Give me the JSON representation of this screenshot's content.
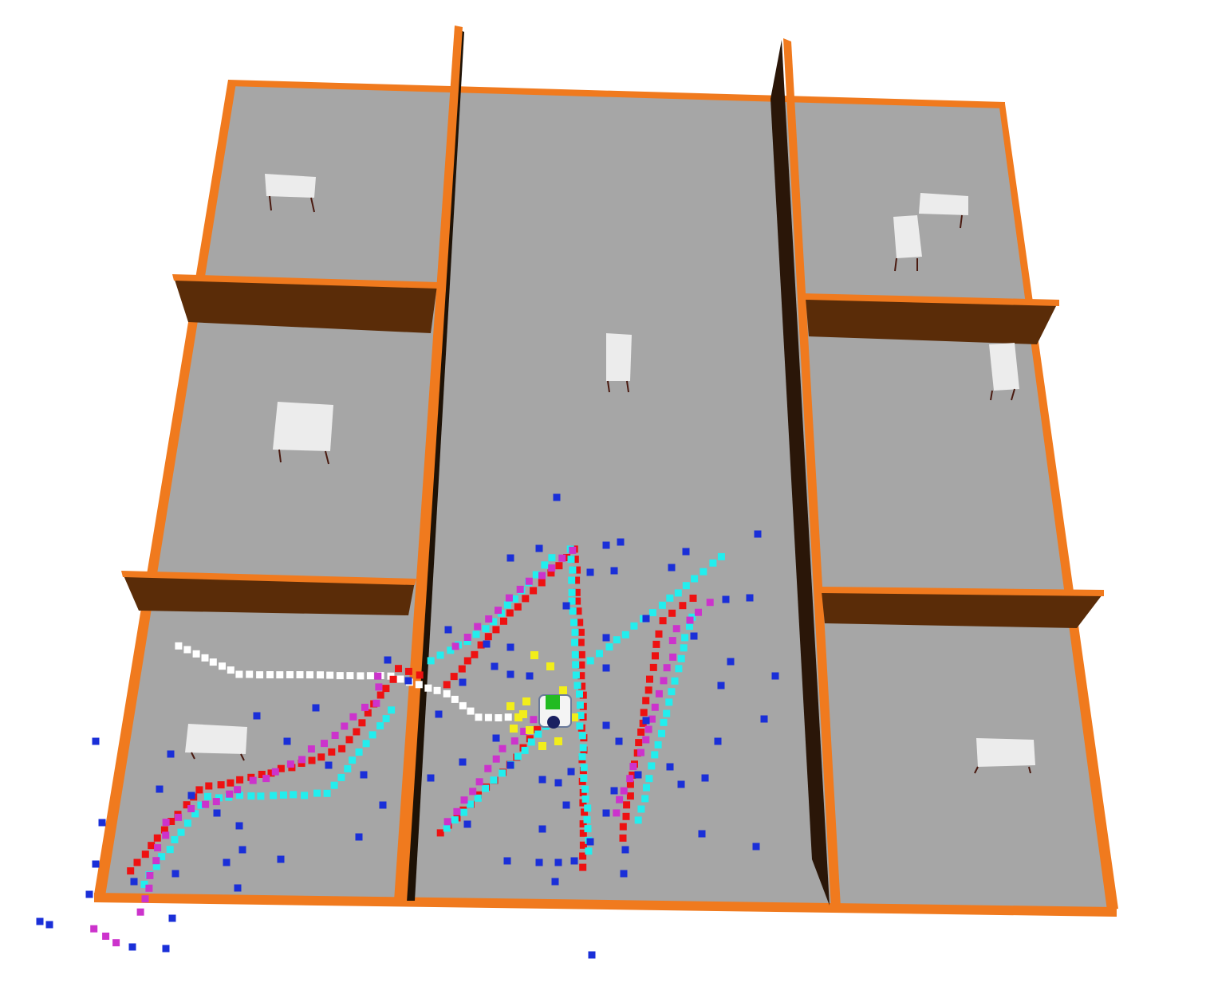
{
  "scene": {
    "type": "3d-simulation-view",
    "description_colors": {
      "background": "#ffffff",
      "floor": "#a6a6a6",
      "wall_top": "#f07a1e",
      "wall_side": "#5a2c08",
      "wall_dark": "#1e1206",
      "table_top": "#ececec",
      "table_leg": "#4a1a10"
    },
    "rooms": [
      "top-left",
      "middle-left",
      "bottom-left",
      "center-corridor",
      "top-right",
      "middle-right",
      "bottom-right"
    ],
    "furniture": [
      {
        "kind": "table",
        "room": "top-left"
      },
      {
        "kind": "table",
        "room": "middle-left"
      },
      {
        "kind": "table",
        "room": "bottom-left"
      },
      {
        "kind": "table",
        "room": "center-corridor"
      },
      {
        "kind": "table",
        "room": "top-right"
      },
      {
        "kind": "table",
        "room": "top-right"
      },
      {
        "kind": "table",
        "room": "middle-right"
      },
      {
        "kind": "table",
        "room": "bottom-right"
      }
    ],
    "marker_colors": {
      "red": "#ee1111",
      "cyan": "#22eeee",
      "magenta": "#cc33cc",
      "blue": "#1a2fd8",
      "white": "#ffffff",
      "yellow": "#f2ee1a",
      "green": "#22bb22"
    },
    "robot": {
      "kind": "mobile-robot",
      "color": "#22bb22"
    }
  }
}
